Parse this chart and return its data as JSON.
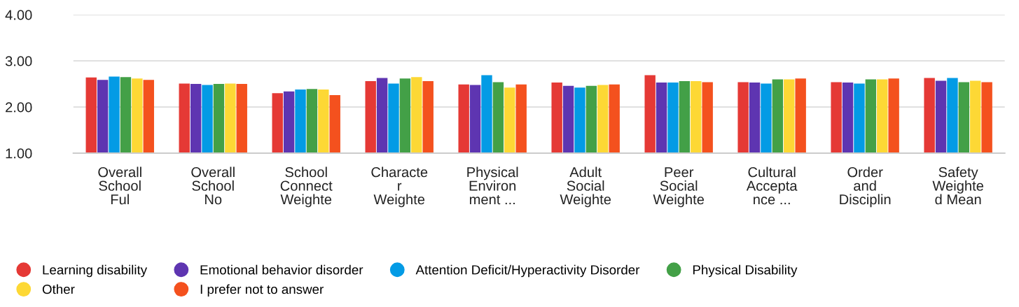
{
  "chart_data": {
    "type": "bar",
    "categories": [
      "Overall\nSchool\nFul",
      "Overall\nSchool\nNo",
      "School\nConnect\nWeighte",
      "Characte\nr\nWeighte",
      "Physical\nEnviron\nment ...",
      "Adult\nSocial\nWeighte",
      "Peer\nSocial\nWeighte",
      "Cultural\nAccepta\nnce ...",
      "Order\nand\nDisciplin",
      "Safety\nWeighte\nd Mean"
    ],
    "series": [
      {
        "name": "Learning disability",
        "color": "#e53935",
        "values": [
          2.64,
          2.51,
          2.3,
          2.56,
          2.49,
          2.53,
          2.69,
          2.54,
          2.54,
          2.63
        ]
      },
      {
        "name": "Emotional behavior disorder",
        "color": "#5e35b1",
        "values": [
          2.59,
          2.5,
          2.34,
          2.63,
          2.48,
          2.46,
          2.53,
          2.53,
          2.53,
          2.57
        ]
      },
      {
        "name": "Attention Deficit/Hyperactivity Disorder",
        "color": "#039be5",
        "values": [
          2.66,
          2.48,
          2.38,
          2.51,
          2.69,
          2.42,
          2.53,
          2.51,
          2.51,
          2.63
        ]
      },
      {
        "name": "Physical Disability",
        "color": "#43a047",
        "values": [
          2.65,
          2.5,
          2.39,
          2.62,
          2.54,
          2.46,
          2.56,
          2.6,
          2.6,
          2.54
        ]
      },
      {
        "name": "Other",
        "color": "#fdd835",
        "values": [
          2.62,
          2.51,
          2.38,
          2.65,
          2.42,
          2.48,
          2.56,
          2.6,
          2.6,
          2.57
        ]
      },
      {
        "name": "I prefer not to answer",
        "color": "#f4511e",
        "values": [
          2.59,
          2.5,
          2.26,
          2.56,
          2.49,
          2.49,
          2.54,
          2.62,
          2.62,
          2.54
        ]
      }
    ],
    "ylim": [
      1,
      4
    ],
    "yticks": [
      {
        "value": 1,
        "label": "1.00"
      },
      {
        "value": 2,
        "label": "2.00"
      },
      {
        "value": 3,
        "label": "3.00"
      },
      {
        "value": 4,
        "label": "4.00"
      }
    ],
    "grid": "y",
    "legend": "bottom"
  }
}
